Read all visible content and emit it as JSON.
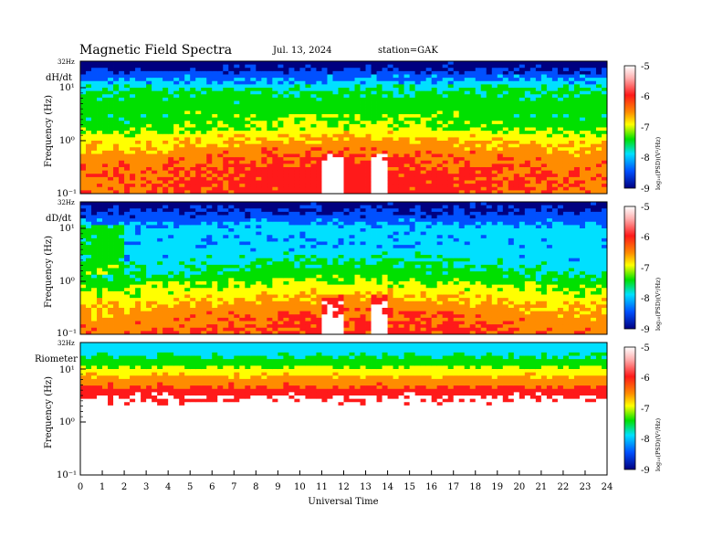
{
  "header": {
    "title": "Magnetic  Field  Spectra",
    "date": "Jul.  13, 2024",
    "station": "station=GAK"
  },
  "colors": {
    "scale": [
      "#ffffff",
      "#ff1a1a",
      "#ff8c00",
      "#ffff00",
      "#00e000",
      "#00e0ff",
      "#0050ff",
      "#000080"
    ]
  },
  "chart_data": [
    {
      "type": "heatmap",
      "panel_label": "dH/dt",
      "top_freq_label": "32Hz",
      "ylabel": "Frequency  (Hz)",
      "yscale": "log",
      "ylim": [
        0.1,
        32
      ],
      "yticks": [
        "10¹",
        "10⁰",
        "10⁻¹"
      ],
      "xlim": [
        0,
        24
      ],
      "colorbar": {
        "label": "log₁₀(PSD)(V²/Hz)",
        "range": [
          -9,
          -5
        ],
        "ticks": [
          "-5",
          "-6",
          "-7",
          "-8",
          "-9"
        ]
      }
    },
    {
      "type": "heatmap",
      "panel_label": "dD/dt",
      "top_freq_label": "32Hz",
      "ylabel": "Frequency  (Hz)",
      "yscale": "log",
      "ylim": [
        0.1,
        32
      ],
      "yticks": [
        "10¹",
        "10⁰",
        "10⁻¹"
      ],
      "xlim": [
        0,
        24
      ],
      "colorbar": {
        "label": "log₁₀(PSD)(V²/Hz)",
        "range": [
          -9,
          -5
        ],
        "ticks": [
          "-5",
          "-6",
          "-7",
          "-8",
          "-9"
        ]
      }
    },
    {
      "type": "heatmap",
      "panel_label": "Riometer",
      "top_freq_label": "32Hz",
      "ylabel": "Frequency  (Hz)",
      "yscale": "log",
      "ylim": [
        0.1,
        32
      ],
      "yticks": [
        "10¹",
        "10⁰",
        "10⁻¹"
      ],
      "xlim": [
        0,
        24
      ],
      "xlabel": "Universal Time",
      "xticks": [
        "0",
        "1",
        "2",
        "3",
        "4",
        "5",
        "6",
        "7",
        "8",
        "9",
        "10",
        "11",
        "12",
        "13",
        "14",
        "15",
        "16",
        "17",
        "18",
        "19",
        "20",
        "21",
        "22",
        "23",
        "24"
      ],
      "colorbar": {
        "label": "log₁₀(PSD)(V²/Hz)",
        "range": [
          -9,
          -5
        ],
        "ticks": [
          "-5",
          "-6",
          "-7",
          "-8",
          "-9"
        ]
      }
    }
  ]
}
